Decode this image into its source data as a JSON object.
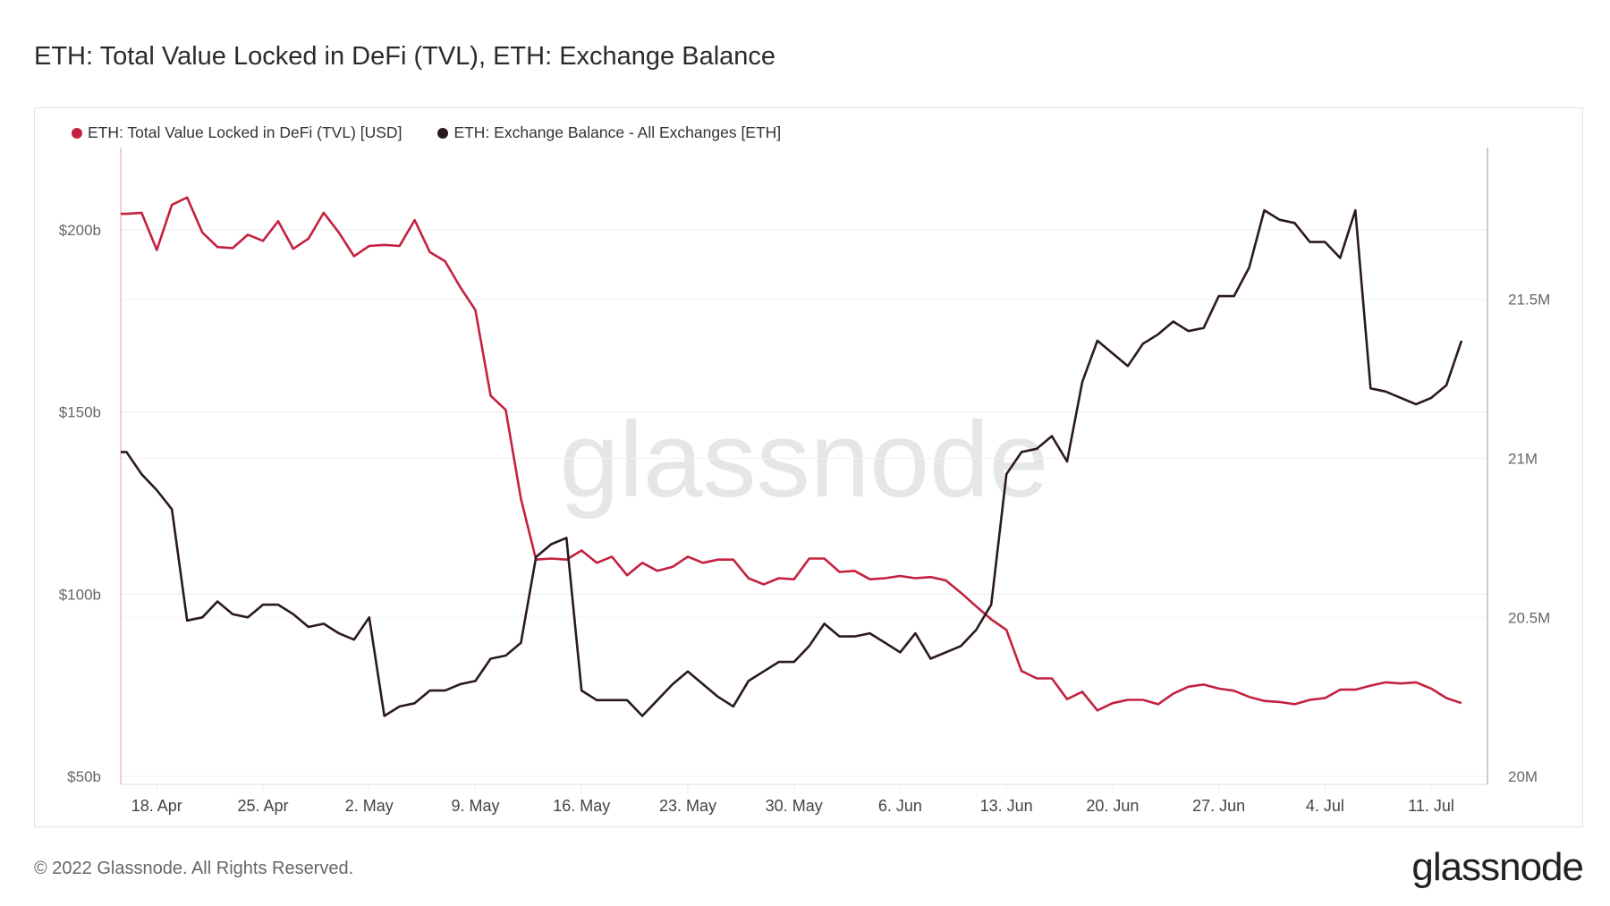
{
  "title": "ETH: Total Value Locked in DeFi (TVL), ETH: Exchange Balance",
  "footer": "© 2022 Glassnode. All Rights Reserved.",
  "logo": "glassnode",
  "watermark": "glassnode",
  "chart_data": {
    "type": "line",
    "title": "ETH: Total Value Locked in DeFi (TVL), ETH: Exchange Balance",
    "legend_position": "top-left",
    "grid": true,
    "start_date": "2022-04-16",
    "xlim": [
      "2022-04-15T15:00",
      "2022-07-14T17:00"
    ],
    "x_ticks": [
      "2022-04-18",
      "2022-04-25",
      "2022-05-02",
      "2022-05-09",
      "2022-05-16",
      "2022-05-23",
      "2022-05-30",
      "2022-06-06",
      "2022-06-13",
      "2022-06-20",
      "2022-06-27",
      "2022-07-04",
      "2022-07-11"
    ],
    "x_tick_labels": [
      "18. Apr",
      "25. Apr",
      "2. May",
      "9. May",
      "16. May",
      "23. May",
      "30. May",
      "6. Jun",
      "13. Jun",
      "20. Jun",
      "27. Jun",
      "4. Jul",
      "11. Jul"
    ],
    "y_left": {
      "ticks": [
        50,
        100,
        150,
        200
      ],
      "tick_labels": [
        "$50b",
        "$100b",
        "$150b",
        "$200b"
      ],
      "ylim": [
        47.8,
        222.6
      ],
      "unit": "USD billions"
    },
    "y_right": {
      "ticks": [
        20,
        20.5,
        21,
        21.5
      ],
      "tick_labels": [
        "20M",
        "20.5M",
        "21M",
        "21.5M"
      ],
      "ylim": [
        19.975,
        21.977
      ],
      "unit": "ETH millions"
    },
    "series": [
      {
        "name": "ETH: Total Value Locked in DeFi (TVL) [USD]",
        "axis": "left",
        "color": "#c3213f",
        "values": [
          204.4,
          204.7,
          194.5,
          206.9,
          208.9,
          199.3,
          195.3,
          195.0,
          198.7,
          197.0,
          202.4,
          194.8,
          197.6,
          204.7,
          199.3,
          192.8,
          195.6,
          195.9,
          195.6,
          202.7,
          193.9,
          191.4,
          184.3,
          178.0,
          154.5,
          150.6,
          126.2,
          109.5,
          109.8,
          109.5,
          112.0,
          108.6,
          110.3,
          105.2,
          108.6,
          106.4,
          107.5,
          110.3,
          108.6,
          109.5,
          109.5,
          104.4,
          102.7,
          104.4,
          104.1,
          109.8,
          109.8,
          106.1,
          106.4,
          104.1,
          104.4,
          105.0,
          104.4,
          104.7,
          103.8,
          100.4,
          96.7,
          93.1,
          90.2,
          78.9,
          76.9,
          76.9,
          71.2,
          73.2,
          68.1,
          70.1,
          71.0,
          71.0,
          69.8,
          72.7,
          74.6,
          75.2,
          74.1,
          73.5,
          71.8,
          70.7,
          70.4,
          69.8,
          71.0,
          71.5,
          73.8,
          73.8,
          74.9,
          75.8,
          75.5,
          75.8,
          74.1,
          71.5,
          70.1
        ]
      },
      {
        "name": "ETH: Exchange Balance - All Exchanges [ETH]",
        "axis": "right",
        "color": "#2a1a1f",
        "values": [
          21.02,
          20.95,
          20.9,
          20.84,
          20.49,
          20.5,
          20.55,
          20.51,
          20.5,
          20.54,
          20.54,
          20.51,
          20.47,
          20.48,
          20.45,
          20.43,
          20.5,
          20.19,
          20.22,
          20.23,
          20.27,
          20.27,
          20.29,
          20.3,
          20.37,
          20.38,
          20.42,
          20.69,
          20.73,
          20.75,
          20.27,
          20.24,
          20.24,
          20.24,
          20.19,
          20.24,
          20.29,
          20.33,
          20.29,
          20.25,
          20.22,
          20.3,
          20.33,
          20.36,
          20.36,
          20.41,
          20.48,
          20.44,
          20.44,
          20.45,
          20.42,
          20.39,
          20.45,
          20.37,
          20.39,
          20.41,
          20.46,
          20.54,
          20.95,
          21.02,
          21.03,
          21.07,
          20.99,
          21.24,
          21.37,
          21.33,
          21.29,
          21.36,
          21.39,
          21.43,
          21.4,
          21.41,
          21.51,
          21.51,
          21.6,
          21.78,
          21.75,
          21.74,
          21.68,
          21.68,
          21.63,
          21.78,
          21.22,
          21.21,
          21.19,
          21.17,
          21.19,
          21.23,
          21.37
        ]
      }
    ]
  }
}
